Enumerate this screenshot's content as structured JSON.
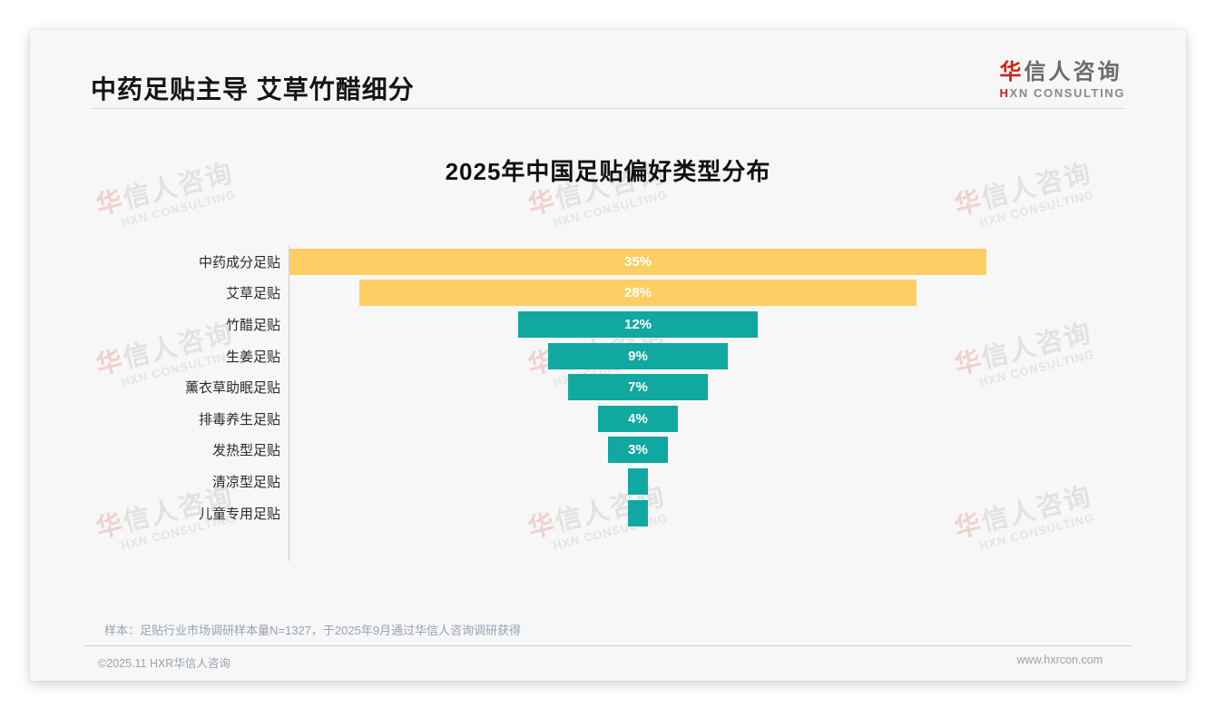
{
  "header": {
    "title": "中药足贴主导 艾草竹醋细分"
  },
  "logo": {
    "zh_red": "华",
    "zh_rest": "信人咨询",
    "en_red": "H",
    "en_rest": "XN CONSULTING"
  },
  "watermark": {
    "zh_red": "华",
    "zh_rest": "信人咨询",
    "en": "HXN CONSULTING"
  },
  "chart_data": {
    "type": "bar",
    "orientation": "horizontal-centered-funnel",
    "title": "2025年中国足贴偏好类型分布",
    "categories": [
      "中药成分足贴",
      "艾草足贴",
      "竹醋足贴",
      "生姜足贴",
      "薰衣草助眠足贴",
      "排毒养生足贴",
      "发热型足贴",
      "清凉型足贴",
      "儿童专用足贴"
    ],
    "values": [
      35,
      28,
      12,
      9,
      7,
      4,
      3,
      1,
      1
    ],
    "value_labels": [
      "35%",
      "28%",
      "12%",
      "9%",
      "7%",
      "4%",
      "3%",
      "",
      ""
    ],
    "bar_colors": [
      "#FDCE64",
      "#FDCE64",
      "#10A8A0",
      "#10A8A0",
      "#10A8A0",
      "#10A8A0",
      "#10A8A0",
      "#10A8A0",
      "#10A8A0"
    ],
    "unit": "%",
    "xlim": [
      0,
      35
    ],
    "grid": false,
    "legend": "none",
    "value_label_color": "#ffffff"
  },
  "footer": {
    "note": "样本：足贴行业市场调研样本量N=1327，于2025年9月通过华信人咨询调研获得",
    "copyright": "©2025.11 HXR华信人咨询",
    "website": "www.hxrcon.com"
  }
}
